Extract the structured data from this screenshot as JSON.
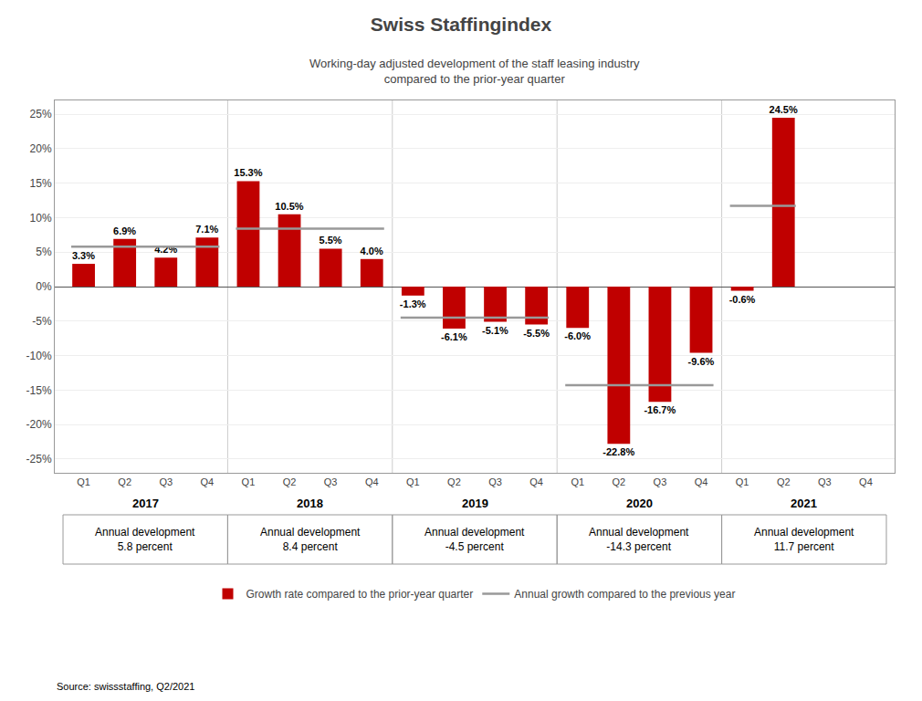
{
  "chart_data": {
    "type": "bar",
    "title": "Swiss Staffingindex",
    "subtitle": "Working-day adjusted development of the staff leasing industry\ncompared to the prior-year quarter",
    "categories": [
      "Q1",
      "Q2",
      "Q3",
      "Q4",
      "Q1",
      "Q2",
      "Q3",
      "Q4",
      "Q1",
      "Q2",
      "Q3",
      "Q4",
      "Q1",
      "Q2",
      "Q3",
      "Q4",
      "Q1",
      "Q2",
      "Q3",
      "Q4"
    ],
    "groups": [
      "2017",
      "2018",
      "2019",
      "2020",
      "2021"
    ],
    "series": [
      {
        "name": "Growth rate compared to the prior-year quarter",
        "type": "bar",
        "color": "#C00000",
        "values": [
          3.3,
          6.9,
          4.2,
          7.1,
          15.3,
          10.5,
          5.5,
          4.0,
          -1.3,
          -6.1,
          -5.1,
          -5.5,
          -6.0,
          -22.8,
          -16.7,
          -9.6,
          -0.6,
          24.5,
          null,
          null
        ],
        "value_labels": [
          "3.3%",
          "6.9%",
          "4.2%",
          "7.1%",
          "15.3%",
          "10.5%",
          "5.5%",
          "4.0%",
          "-1.3%",
          "-6.1%",
          "-5.1%",
          "-5.5%",
          "-6.0%",
          "-22.8%",
          "-16.7%",
          "-9.6%",
          "-0.6%",
          "24.5%",
          null,
          null
        ]
      },
      {
        "name": "Annual growth compared to the previous year",
        "type": "line",
        "color": "#999999",
        "values": [
          5.8,
          5.8,
          5.8,
          5.8,
          8.4,
          8.4,
          8.4,
          8.4,
          -4.5,
          -4.5,
          -4.5,
          -4.5,
          -14.3,
          -14.3,
          -14.3,
          -14.3,
          11.7,
          11.7,
          null,
          null
        ]
      }
    ],
    "annotations": [
      "Annual development\n5.8 percent",
      "Annual development\n8.4 percent",
      "Annual development\n-4.5 percent",
      "Annual development\n-14.3 percent",
      "Annual development\n11.7 percent"
    ],
    "source": "Source: swissstaffing, Q2/2021",
    "ylim": [
      -27,
      27
    ],
    "yticks": [
      {
        "value": -25,
        "label": "-25%"
      },
      {
        "value": -20,
        "label": "-20%"
      },
      {
        "value": -15,
        "label": "-15%"
      },
      {
        "value": -10,
        "label": "-10%"
      },
      {
        "value": -5,
        "label": "-5%"
      },
      {
        "value": 0,
        "label": "0%"
      },
      {
        "value": 5,
        "label": "5%"
      },
      {
        "value": 10,
        "label": "10%"
      },
      {
        "value": 15,
        "label": "15%"
      },
      {
        "value": 20,
        "label": "20%"
      },
      {
        "value": 25,
        "label": "25%"
      }
    ],
    "grid": true,
    "data_labels": true
  }
}
